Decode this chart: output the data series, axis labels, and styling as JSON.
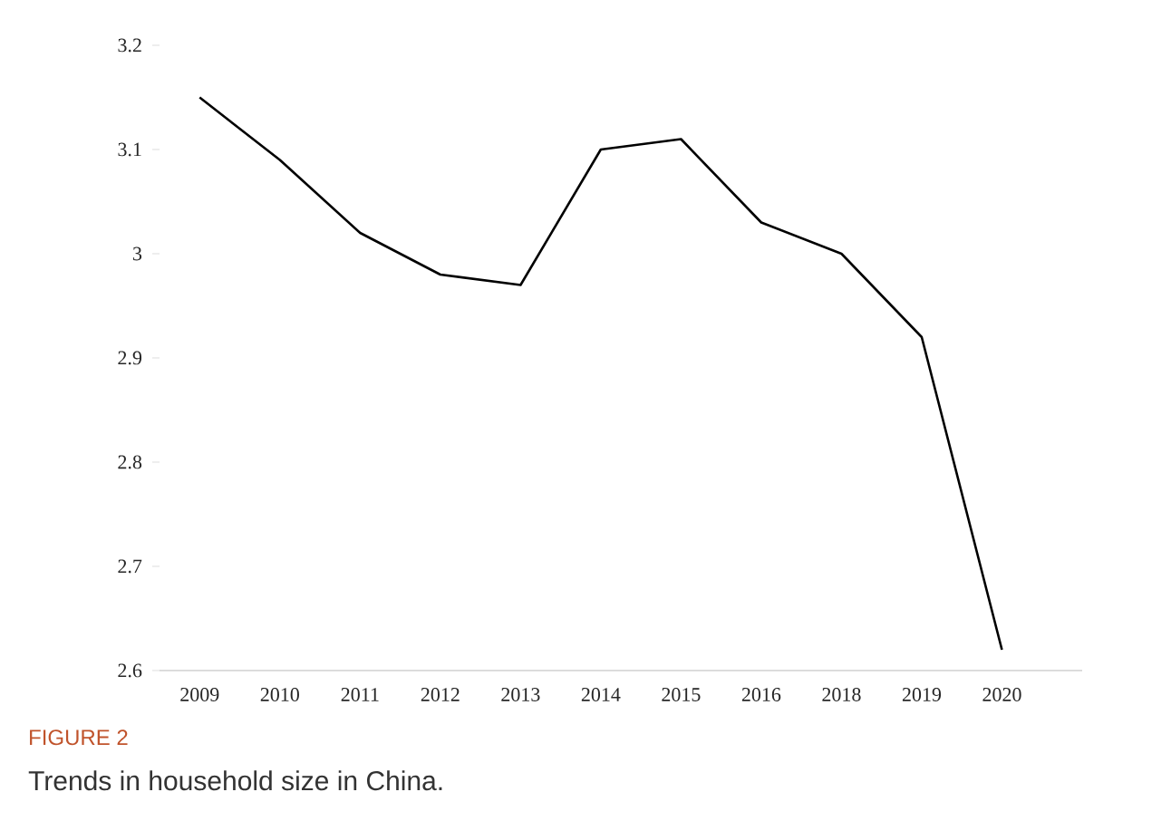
{
  "chart_data": {
    "type": "line",
    "categories": [
      "2009",
      "2010",
      "2011",
      "2012",
      "2013",
      "2014",
      "2015",
      "2016",
      "2018",
      "2019",
      "2020"
    ],
    "values": [
      3.15,
      3.09,
      3.02,
      2.98,
      2.97,
      3.1,
      3.11,
      3.03,
      3.0,
      2.92,
      2.62
    ],
    "color": "#000000",
    "ylim": [
      2.6,
      3.2
    ],
    "yticks": [
      2.6,
      2.7,
      2.8,
      2.9,
      3,
      3.1,
      3.2
    ],
    "annotations": [
      "FIGURE 2",
      "Trends in household size in China."
    ]
  }
}
